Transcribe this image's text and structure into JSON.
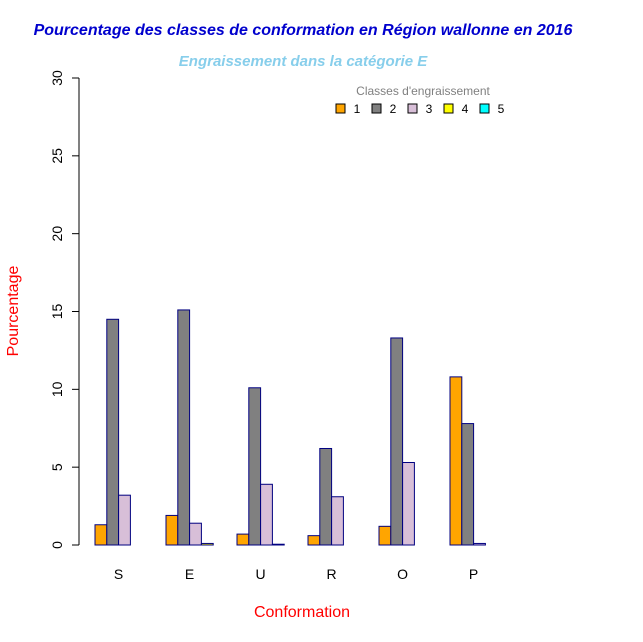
{
  "chart_data": {
    "type": "bar",
    "title": "Pourcentage des classes de conformation en Région wallonne en 2016",
    "subtitle": "Engraissement dans la catégorie E",
    "xlabel": "Conformation",
    "ylabel": "Pourcentage",
    "categories": [
      "S",
      "E",
      "U",
      "R",
      "O",
      "P"
    ],
    "ylim": [
      0,
      30
    ],
    "yticks": [
      "0",
      "5",
      "10",
      "15",
      "20",
      "25",
      "30"
    ],
    "legend_title": "Classes d'engraissement",
    "legend_position": "top-right",
    "series": [
      {
        "name": "1",
        "color": "#FFA500",
        "values": [
          1.3,
          1.9,
          0.7,
          0.6,
          1.2,
          10.8
        ]
      },
      {
        "name": "2",
        "color": "#808080",
        "values": [
          14.5,
          15.1,
          10.1,
          6.2,
          13.3,
          7.8
        ]
      },
      {
        "name": "3",
        "color": "#D8BFD8",
        "values": [
          3.2,
          1.4,
          3.9,
          3.1,
          5.3,
          0.1
        ]
      },
      {
        "name": "4",
        "color": "#FFFF00",
        "values": [
          0.0,
          0.1,
          0.05,
          0.0,
          0.0,
          0.0
        ]
      },
      {
        "name": "5",
        "color": "#00FFFF",
        "values": [
          0.0,
          0.0,
          0.0,
          0.0,
          0.0,
          0.0
        ]
      }
    ],
    "colors": {
      "title": "#0000CD",
      "subtitle": "#87CEEB",
      "axis_label": "#FF0000",
      "legend_title": "#808080",
      "bar_border": "#000080"
    }
  }
}
